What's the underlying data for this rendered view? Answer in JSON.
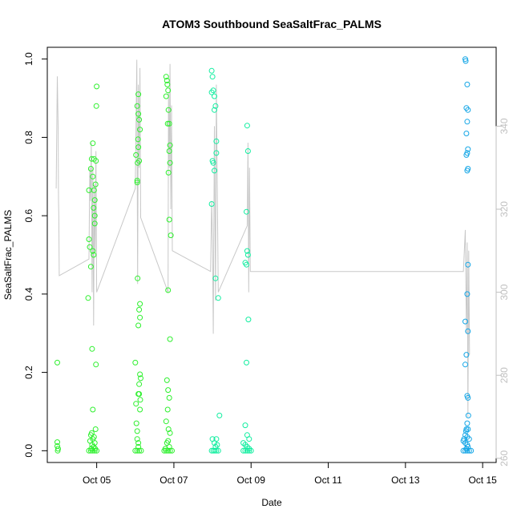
{
  "chart_data": {
    "type": "scatter",
    "title": "ATOM3 Southbound SeaSaltFrac_PALMS",
    "xlabel": "Date",
    "ylabel": "SeaSaltFrac_PALMS",
    "x_ticks": [
      "Oct 05",
      "Oct 07",
      "Oct 09",
      "Oct 11",
      "Oct 13",
      "Oct 15"
    ],
    "x_tick_values": [
      5,
      7,
      9,
      11,
      13,
      15
    ],
    "xlim": [
      3.72,
      15.35
    ],
    "ylim": [
      -0.03,
      1.03
    ],
    "y_ticks": [
      "0.0",
      "0.2",
      "0.4",
      "0.6",
      "0.8",
      "1.0"
    ],
    "y_tick_values": [
      0,
      0.2,
      0.4,
      0.6,
      0.8,
      1.0
    ],
    "y2_ticks": [
      "260",
      "280",
      "300",
      "320",
      "340"
    ],
    "y2_tick_values": [
      260,
      280,
      300,
      320,
      340
    ],
    "y2lim": [
      259,
      359
    ],
    "colors": {
      "early": "#22ee22",
      "mid": "#10f0a8",
      "late": "#10b8ee",
      "line": "#c8c8c8"
    },
    "series": [
      {
        "color": "#2ef02e",
        "points": [
          [
            3.98,
            0.225
          ],
          [
            3.98,
            0.022
          ],
          [
            3.98,
            0.012
          ],
          [
            4.0,
            0.005
          ],
          [
            3.99,
            0.0
          ],
          [
            4.78,
            0.39
          ],
          [
            4.82,
            0.52
          ],
          [
            4.8,
            0.54
          ],
          [
            4.85,
            0.47
          ],
          [
            4.8,
            0.665
          ],
          [
            4.87,
            0.745
          ],
          [
            4.85,
            0.72
          ],
          [
            4.9,
            0.785
          ],
          [
            4.9,
            0.7
          ],
          [
            4.93,
            0.665
          ],
          [
            4.88,
            0.26
          ],
          [
            4.95,
            0.58
          ],
          [
            4.93,
            0.745
          ],
          [
            4.97,
            0.68
          ],
          [
            4.95,
            0.64
          ],
          [
            4.92,
            0.62
          ],
          [
            4.95,
            0.6
          ],
          [
            4.9,
            0.51
          ],
          [
            4.92,
            0.5
          ],
          [
            4.98,
            0.74
          ],
          [
            5.0,
            0.93
          ],
          [
            4.99,
            0.88
          ],
          [
            4.98,
            0.22
          ],
          [
            4.9,
            0.105
          ],
          [
            4.97,
            0.055
          ],
          [
            4.85,
            0.04
          ],
          [
            4.9,
            0.03
          ],
          [
            4.95,
            0.02
          ],
          [
            4.88,
            0.015
          ],
          [
            4.92,
            0.01
          ],
          [
            4.96,
            0.005
          ],
          [
            4.8,
            0.0
          ],
          [
            4.85,
            0.0
          ],
          [
            4.9,
            0.0
          ],
          [
            4.95,
            0.0
          ],
          [
            5.0,
            0.0
          ],
          [
            4.83,
            0.025
          ],
          [
            4.87,
            0.045
          ],
          [
            4.93,
            0.035
          ],
          [
            4.86,
            0.005
          ],
          [
            6.02,
            0.755
          ],
          [
            6.05,
            0.69
          ],
          [
            6.0,
            0.225
          ],
          [
            6.03,
            0.07
          ],
          [
            6.05,
            0.05
          ],
          [
            6.02,
            0.12
          ],
          [
            6.08,
            0.145
          ],
          [
            6.1,
            0.17
          ],
          [
            6.06,
            0.44
          ],
          [
            6.08,
            0.91
          ],
          [
            6.05,
            0.88
          ],
          [
            6.08,
            0.86
          ],
          [
            6.1,
            0.845
          ],
          [
            6.12,
            0.82
          ],
          [
            6.07,
            0.795
          ],
          [
            6.08,
            0.775
          ],
          [
            6.1,
            0.74
          ],
          [
            6.06,
            0.735
          ],
          [
            6.05,
            0.685
          ],
          [
            6.12,
            0.375
          ],
          [
            6.1,
            0.36
          ],
          [
            6.12,
            0.34
          ],
          [
            6.08,
            0.32
          ],
          [
            6.12,
            0.195
          ],
          [
            6.14,
            0.185
          ],
          [
            6.1,
            0.145
          ],
          [
            6.13,
            0.13
          ],
          [
            6.12,
            0.105
          ],
          [
            6.05,
            0.03
          ],
          [
            6.08,
            0.02
          ],
          [
            6.0,
            0.0
          ],
          [
            6.05,
            0.0
          ],
          [
            6.1,
            0.0
          ],
          [
            6.15,
            0.0
          ],
          [
            6.08,
            0.01
          ],
          [
            6.8,
            0.955
          ],
          [
            6.82,
            0.945
          ],
          [
            6.83,
            0.935
          ],
          [
            6.85,
            0.92
          ],
          [
            6.8,
            0.905
          ],
          [
            6.86,
            0.87
          ],
          [
            6.84,
            0.835
          ],
          [
            6.88,
            0.835
          ],
          [
            6.9,
            0.78
          ],
          [
            6.86,
            0.71
          ],
          [
            6.88,
            0.765
          ],
          [
            6.9,
            0.735
          ],
          [
            6.92,
            0.55
          ],
          [
            6.88,
            0.59
          ],
          [
            6.85,
            0.41
          ],
          [
            6.9,
            0.285
          ],
          [
            6.82,
            0.18
          ],
          [
            6.85,
            0.155
          ],
          [
            6.88,
            0.135
          ],
          [
            6.84,
            0.105
          ],
          [
            6.8,
            0.075
          ],
          [
            6.86,
            0.055
          ],
          [
            6.9,
            0.045
          ],
          [
            6.82,
            0.02
          ],
          [
            6.85,
            0.025
          ],
          [
            6.8,
            0.0
          ],
          [
            6.85,
            0.0
          ],
          [
            6.9,
            0.0
          ],
          [
            6.95,
            0.0
          ],
          [
            6.75,
            0.0
          ],
          [
            6.88,
            0.01
          ],
          [
            6.78,
            0.005
          ]
        ]
      },
      {
        "color": "#12eea0",
        "points": [
          [
            7.98,
            0.97
          ],
          [
            8.0,
            0.955
          ],
          [
            8.02,
            0.92
          ],
          [
            7.98,
            0.915
          ],
          [
            8.05,
            0.905
          ],
          [
            8.08,
            0.88
          ],
          [
            8.05,
            0.87
          ],
          [
            8.1,
            0.79
          ],
          [
            8.1,
            0.76
          ],
          [
            8.0,
            0.74
          ],
          [
            8.02,
            0.735
          ],
          [
            8.05,
            0.715
          ],
          [
            7.98,
            0.63
          ],
          [
            8.08,
            0.44
          ],
          [
            8.15,
            0.39
          ],
          [
            8.18,
            0.09
          ],
          [
            8.0,
            0.03
          ],
          [
            8.05,
            0.02
          ],
          [
            8.1,
            0.03
          ],
          [
            8.12,
            0.015
          ],
          [
            7.98,
            0.0
          ],
          [
            8.02,
            0.0
          ],
          [
            8.06,
            0.0
          ],
          [
            8.1,
            0.0
          ],
          [
            8.15,
            0.0
          ],
          [
            8.08,
            0.01
          ],
          [
            8.9,
            0.83
          ],
          [
            8.92,
            0.765
          ],
          [
            8.88,
            0.61
          ],
          [
            8.9,
            0.51
          ],
          [
            8.92,
            0.5
          ],
          [
            8.88,
            0.475
          ],
          [
            8.85,
            0.48
          ],
          [
            8.93,
            0.335
          ],
          [
            8.88,
            0.225
          ],
          [
            8.85,
            0.065
          ],
          [
            8.9,
            0.04
          ],
          [
            8.95,
            0.03
          ],
          [
            8.8,
            0.02
          ],
          [
            8.85,
            0.015
          ],
          [
            8.9,
            0.01
          ],
          [
            8.95,
            0.005
          ],
          [
            8.8,
            0.0
          ],
          [
            8.85,
            0.0
          ],
          [
            8.9,
            0.0
          ],
          [
            8.95,
            0.0
          ],
          [
            9.0,
            0.0
          ]
        ]
      },
      {
        "color": "#14a6e6",
        "points": [
          [
            14.55,
            1.0
          ],
          [
            14.56,
            0.995
          ],
          [
            14.6,
            0.935
          ],
          [
            14.58,
            0.875
          ],
          [
            14.62,
            0.87
          ],
          [
            14.6,
            0.84
          ],
          [
            14.58,
            0.81
          ],
          [
            14.62,
            0.77
          ],
          [
            14.6,
            0.76
          ],
          [
            14.58,
            0.755
          ],
          [
            14.62,
            0.72
          ],
          [
            14.6,
            0.715
          ],
          [
            14.62,
            0.475
          ],
          [
            14.6,
            0.4
          ],
          [
            14.55,
            0.33
          ],
          [
            14.62,
            0.305
          ],
          [
            14.58,
            0.245
          ],
          [
            14.55,
            0.22
          ],
          [
            14.6,
            0.14
          ],
          [
            14.62,
            0.135
          ],
          [
            14.63,
            0.09
          ],
          [
            14.6,
            0.07
          ],
          [
            14.58,
            0.055
          ],
          [
            14.62,
            0.055
          ],
          [
            14.55,
            0.04
          ],
          [
            14.6,
            0.035
          ],
          [
            14.65,
            0.03
          ],
          [
            14.5,
            0.025
          ],
          [
            14.55,
            0.02
          ],
          [
            14.6,
            0.015
          ],
          [
            14.62,
            0.01
          ],
          [
            14.5,
            0.0
          ],
          [
            14.55,
            0.0
          ],
          [
            14.6,
            0.0
          ],
          [
            14.65,
            0.0
          ],
          [
            14.7,
            0.0
          ],
          [
            14.58,
            0.005
          ],
          [
            14.52,
            0.03
          ],
          [
            14.57,
            0.05
          ]
        ]
      }
    ],
    "secondary_line": {
      "color": "#c8c8c8",
      "axis": "right",
      "points": [
        [
          3.95,
          325
        ],
        [
          3.96,
          335
        ],
        [
          3.98,
          352
        ],
        [
          4.0,
          340
        ],
        [
          4.01,
          322
        ],
        [
          4.02,
          318
        ],
        [
          4.03,
          304
        ],
        [
          4.8,
          308
        ],
        [
          4.82,
          330
        ],
        [
          4.84,
          322
        ],
        [
          4.86,
          336
        ],
        [
          4.88,
          300
        ],
        [
          4.9,
          330
        ],
        [
          4.92,
          292
        ],
        [
          4.94,
          326
        ],
        [
          4.96,
          310
        ],
        [
          4.98,
          334
        ],
        [
          5.0,
          300
        ],
        [
          6.0,
          325
        ],
        [
          6.02,
          340
        ],
        [
          6.04,
          356
        ],
        [
          6.06,
          302
        ],
        [
          6.08,
          350
        ],
        [
          6.1,
          330
        ],
        [
          6.12,
          354
        ],
        [
          6.14,
          318
        ],
        [
          6.85,
          300
        ],
        [
          6.86,
          348
        ],
        [
          6.88,
          330
        ],
        [
          6.9,
          355
        ],
        [
          6.92,
          320
        ],
        [
          6.94,
          345
        ],
        [
          6.96,
          310
        ],
        [
          7.95,
          305
        ],
        [
          7.98,
          322
        ],
        [
          8.0,
          312
        ],
        [
          8.02,
          290
        ],
        [
          8.05,
          340
        ],
        [
          8.08,
          298
        ],
        [
          8.1,
          350
        ],
        [
          8.15,
          300
        ],
        [
          8.9,
          316
        ],
        [
          8.92,
          336
        ],
        [
          8.94,
          300
        ],
        [
          8.96,
          330
        ],
        [
          8.98,
          305
        ],
        [
          14.5,
          305
        ],
        [
          14.55,
          315
        ],
        [
          14.58,
          290
        ],
        [
          14.6,
          312
        ],
        [
          14.62,
          270
        ],
        [
          14.64,
          310
        ],
        [
          14.66,
          285
        ]
      ]
    }
  }
}
